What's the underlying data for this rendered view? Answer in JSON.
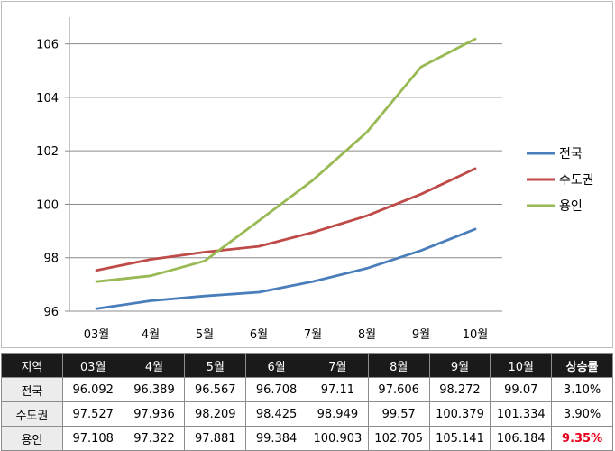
{
  "chart_data": {
    "type": "line",
    "categories": [
      "03월",
      "4월",
      "5월",
      "6월",
      "7월",
      "8월",
      "9월",
      "10월"
    ],
    "series": [
      {
        "name": "전국",
        "color": "#4a7ebb",
        "values": [
          96.092,
          96.389,
          96.567,
          96.708,
          97.11,
          97.606,
          98.272,
          99.07
        ]
      },
      {
        "name": "수도권",
        "color": "#be4b48",
        "values": [
          97.527,
          97.936,
          98.209,
          98.425,
          98.949,
          99.57,
          100.379,
          101.334
        ]
      },
      {
        "name": "용인",
        "color": "#98b954",
        "values": [
          97.108,
          97.322,
          97.881,
          99.384,
          100.903,
          102.705,
          105.141,
          106.184
        ]
      }
    ],
    "yticks": [
      96,
      98,
      100,
      102,
      104,
      106
    ],
    "ylim": [
      96,
      107
    ],
    "grid": "horizontal",
    "legend": "right",
    "title": "",
    "xlabel": "",
    "ylabel": ""
  },
  "table": {
    "headers": [
      "지역",
      "03월",
      "4월",
      "5월",
      "6월",
      "7월",
      "8월",
      "9월",
      "10월",
      "상승률"
    ],
    "rows": [
      {
        "label": "전국",
        "values": [
          "96.092",
          "96.389",
          "96.567",
          "96.708",
          "97.11",
          "97.606",
          "98.272",
          "99.07"
        ],
        "rate": "3.10%",
        "highlight": false
      },
      {
        "label": "수도권",
        "values": [
          "97.527",
          "97.936",
          "98.209",
          "98.425",
          "98.949",
          "99.57",
          "100.379",
          "101.334"
        ],
        "rate": "3.90%",
        "highlight": false
      },
      {
        "label": "용인",
        "values": [
          "97.108",
          "97.322",
          "97.881",
          "99.384",
          "100.903",
          "102.705",
          "105.141",
          "106.184"
        ],
        "rate": "9.35%",
        "highlight": true
      }
    ]
  }
}
